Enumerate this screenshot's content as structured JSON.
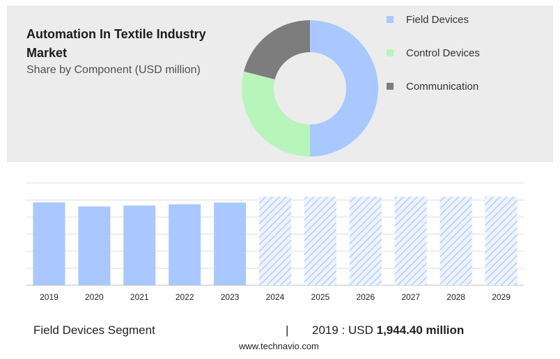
{
  "header": {
    "title": "Automation In Textile Industry Market",
    "subtitle": "Share by Component (USD million)"
  },
  "chart_data": [
    {
      "type": "pie",
      "variant": "donut",
      "title": "Automation In Textile Industry Market",
      "subtitle": "Share by Component (USD million)",
      "legend_position": "right",
      "series": [
        {
          "name": "Field Devices",
          "share_percent": 50,
          "color": "#a8c8ff"
        },
        {
          "name": "Control Devices",
          "share_percent": 29,
          "color": "#b7f5ba"
        },
        {
          "name": "Communication",
          "share_percent": 21,
          "color": "#7d7d7d"
        }
      ]
    },
    {
      "type": "bar",
      "title": "",
      "categories": [
        "2019",
        "2020",
        "2021",
        "2022",
        "2023",
        "2024",
        "2025",
        "2026",
        "2027",
        "2028",
        "2029"
      ],
      "values": [
        1944.4,
        1850,
        1870,
        1900,
        1940,
        2080,
        2080,
        2080,
        2080,
        2080,
        2080
      ],
      "value_status": [
        "actual",
        "actual",
        "actual",
        "actual",
        "actual",
        "forecast",
        "forecast",
        "forecast",
        "forecast",
        "forecast",
        "forecast"
      ],
      "ylim": [
        0,
        2400
      ],
      "y_gridlines": [
        0,
        400,
        800,
        1200,
        1600,
        2000,
        2400
      ],
      "y_tick_labels_shown": false,
      "grid": true,
      "colors": {
        "actual": "#a8c8ff",
        "forecast_hatch": "#a8c8ff",
        "forecast_background": "#eef3ff"
      }
    }
  ],
  "footer": {
    "segment_label": "Field Devices Segment",
    "divider": "|",
    "year_prefix": "2019 : USD",
    "value": "1,944.40 million",
    "source": "www.technavio.com"
  }
}
